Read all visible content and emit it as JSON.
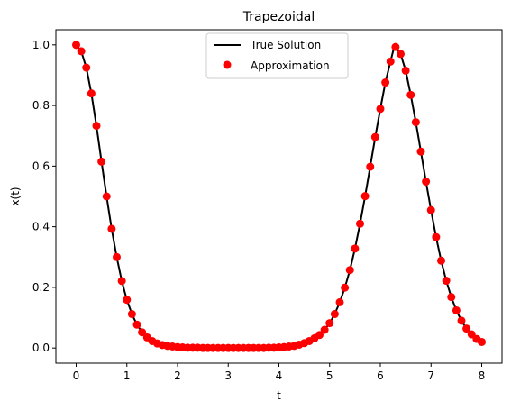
{
  "chart_data": {
    "type": "line",
    "title": "Trapezoidal",
    "xlabel": "t",
    "ylabel": "x(t)",
    "xlim": [
      -0.4,
      8.4
    ],
    "ylim": [
      -0.05,
      1.05
    ],
    "xticks": [
      0,
      1,
      2,
      3,
      4,
      5,
      6,
      7,
      8
    ],
    "xtick_labels": [
      "0",
      "1",
      "2",
      "3",
      "4",
      "5",
      "6",
      "7",
      "8"
    ],
    "yticks": [
      0.0,
      0.2,
      0.4,
      0.6,
      0.8,
      1.0
    ],
    "ytick_labels": [
      "0.0",
      "0.2",
      "0.4",
      "0.6",
      "0.8",
      "1.0"
    ],
    "grid": false,
    "legend_position": "top-center",
    "series": [
      {
        "name": "True Solution",
        "kind": "line",
        "color": "#000000",
        "x": [
          0.0,
          0.1,
          0.2,
          0.3,
          0.4,
          0.5,
          0.6,
          0.7,
          0.8,
          0.9,
          1.0,
          1.1,
          1.2,
          1.3,
          1.4,
          1.5,
          1.6,
          1.7,
          1.8,
          1.9,
          2.0,
          2.2,
          2.4,
          2.6,
          2.8,
          3.0,
          3.2,
          3.4,
          3.6,
          3.8,
          4.0,
          4.2,
          4.4,
          4.5,
          4.6,
          4.7,
          4.8,
          4.9,
          5.0,
          5.1,
          5.2,
          5.3,
          5.4,
          5.5,
          5.6,
          5.7,
          5.8,
          5.9,
          6.0,
          6.1,
          6.2,
          6.283,
          6.4,
          6.5,
          6.6,
          6.7,
          6.8,
          6.9,
          7.0,
          7.1,
          7.2,
          7.3,
          7.4,
          7.5,
          7.6,
          7.7,
          7.8,
          7.9,
          8.0
        ],
        "y": [
          1.0,
          0.979,
          0.925,
          0.84,
          0.733,
          0.615,
          0.5,
          0.393,
          0.3,
          0.221,
          0.159,
          0.112,
          0.077,
          0.052,
          0.035,
          0.023,
          0.015,
          0.01,
          0.007,
          0.005,
          0.003,
          0.001,
          0.001,
          0.0,
          0.0,
          0.0,
          0.0,
          0.0,
          0.0,
          0.001,
          0.002,
          0.005,
          0.011,
          0.016,
          0.023,
          0.032,
          0.043,
          0.06,
          0.082,
          0.112,
          0.151,
          0.199,
          0.257,
          0.328,
          0.41,
          0.501,
          0.598,
          0.696,
          0.789,
          0.876,
          0.945,
          1.0,
          0.97,
          0.915,
          0.835,
          0.745,
          0.648,
          0.549,
          0.455,
          0.366,
          0.288,
          0.222,
          0.168,
          0.124,
          0.09,
          0.064,
          0.045,
          0.03,
          0.02
        ]
      },
      {
        "name": "Approximation",
        "kind": "scatter",
        "color": "#ff0000",
        "x": [
          0.0,
          0.1,
          0.2,
          0.3,
          0.4,
          0.5,
          0.6,
          0.7,
          0.8,
          0.9,
          1.0,
          1.1,
          1.2,
          1.3,
          1.4,
          1.5,
          1.6,
          1.7,
          1.8,
          1.9,
          2.0,
          2.1,
          2.2,
          2.3,
          2.4,
          2.5,
          2.6,
          2.7,
          2.8,
          2.9,
          3.0,
          3.1,
          3.2,
          3.3,
          3.4,
          3.5,
          3.6,
          3.7,
          3.8,
          3.9,
          4.0,
          4.1,
          4.2,
          4.3,
          4.4,
          4.5,
          4.6,
          4.7,
          4.8,
          4.9,
          5.0,
          5.1,
          5.2,
          5.3,
          5.4,
          5.5,
          5.6,
          5.7,
          5.8,
          5.9,
          6.0,
          6.1,
          6.2,
          6.3,
          6.4,
          6.5,
          6.6,
          6.7,
          6.8,
          6.9,
          7.0,
          7.1,
          7.2,
          7.3,
          7.4,
          7.5,
          7.6,
          7.7,
          7.8,
          7.9,
          8.0
        ],
        "y": [
          1.0,
          0.979,
          0.925,
          0.84,
          0.733,
          0.615,
          0.5,
          0.393,
          0.3,
          0.221,
          0.159,
          0.112,
          0.077,
          0.052,
          0.035,
          0.023,
          0.015,
          0.01,
          0.007,
          0.005,
          0.003,
          0.002,
          0.001,
          0.001,
          0.001,
          0.0,
          0.0,
          0.0,
          0.0,
          0.0,
          0.0,
          0.0,
          0.0,
          0.0,
          0.0,
          0.0,
          0.0,
          0.0,
          0.001,
          0.001,
          0.002,
          0.003,
          0.005,
          0.007,
          0.011,
          0.016,
          0.023,
          0.032,
          0.043,
          0.06,
          0.082,
          0.112,
          0.151,
          0.199,
          0.257,
          0.328,
          0.41,
          0.501,
          0.598,
          0.696,
          0.789,
          0.876,
          0.945,
          0.993,
          0.97,
          0.915,
          0.835,
          0.745,
          0.648,
          0.549,
          0.455,
          0.366,
          0.288,
          0.222,
          0.168,
          0.124,
          0.09,
          0.064,
          0.045,
          0.03,
          0.02
        ]
      }
    ]
  }
}
